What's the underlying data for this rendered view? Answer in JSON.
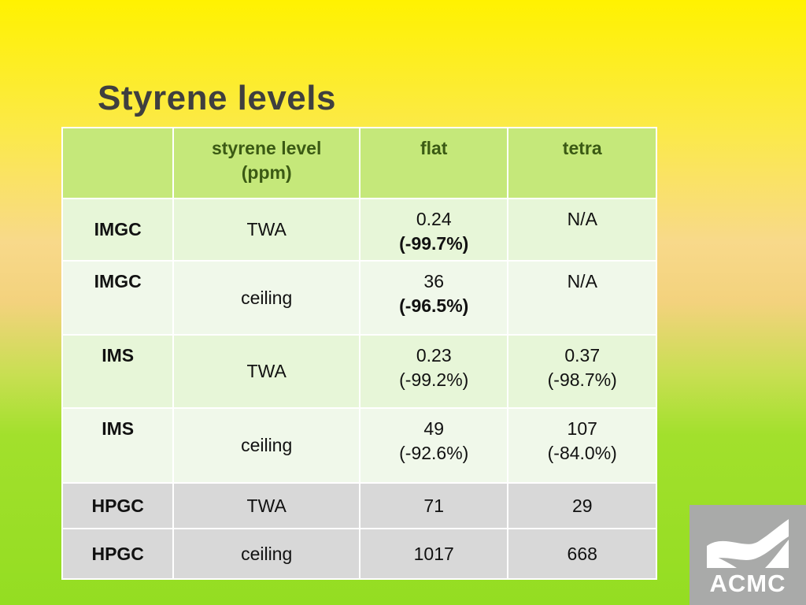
{
  "slide": {
    "title": "Styrene levels"
  },
  "table": {
    "headers": [
      "",
      "styrene level (ppm)",
      "flat",
      "tetra"
    ],
    "header_line2": "(ppm)",
    "header_line1": "styrene level",
    "rows": [
      {
        "label": "IMGC",
        "level": "TWA",
        "flat_value": "0.24",
        "flat_change": "(-99.7%)",
        "tetra_value": "N/A",
        "tetra_change": ""
      },
      {
        "label": "IMGC",
        "level": "ceiling",
        "flat_value": "36",
        "flat_change": "(-96.5%)",
        "tetra_value": "N/A",
        "tetra_change": ""
      },
      {
        "label": "IMS",
        "level": "TWA",
        "flat_value": "0.23",
        "flat_change": "(-99.2%)",
        "tetra_value": "0.37",
        "tetra_change": "(-98.7%)"
      },
      {
        "label": "IMS",
        "level": "ceiling",
        "flat_value": "49",
        "flat_change": "(-92.6%)",
        "tetra_value": "107",
        "tetra_change": "(-84.0%)"
      },
      {
        "label": "HPGC",
        "level": "TWA",
        "flat_value": "71",
        "flat_change": "",
        "tetra_value": "29",
        "tetra_change": ""
      },
      {
        "label": "HPGC",
        "level": "ceiling",
        "flat_value": "1017",
        "flat_change": "",
        "tetra_value": "668",
        "tetra_change": ""
      }
    ]
  },
  "logo": {
    "text": "ACMC"
  },
  "colors": {
    "header_bg": "#c5e87a",
    "header_text": "#3b5a14",
    "title": "#3f3f3f",
    "logo_bg": "#a9aaa9"
  }
}
